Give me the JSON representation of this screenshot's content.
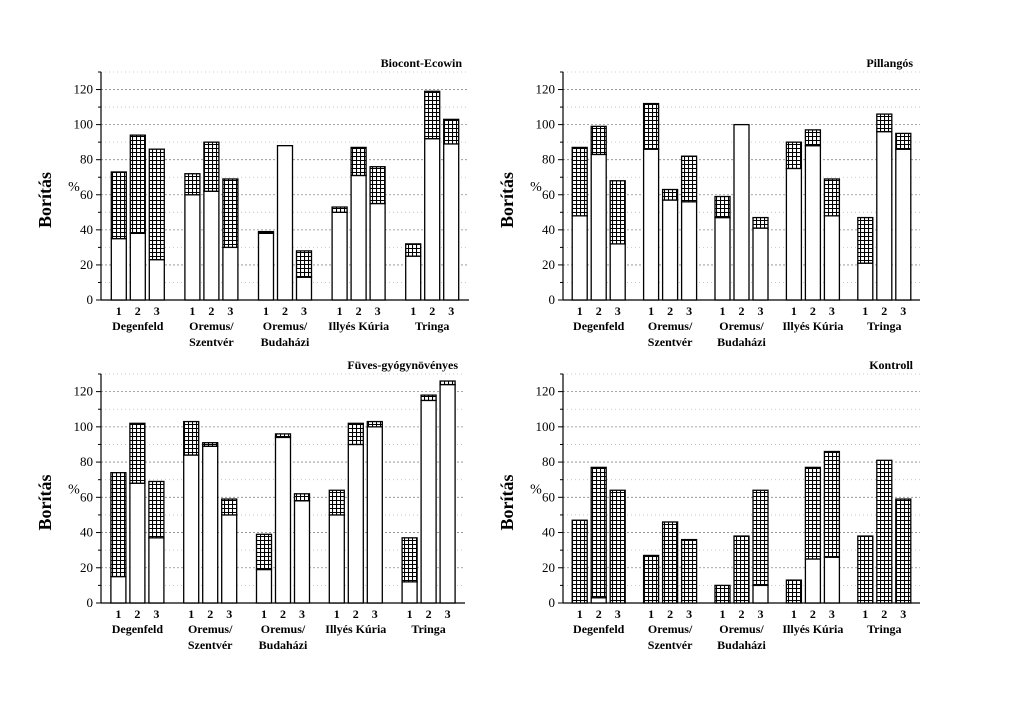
{
  "chart_data": [
    {
      "type": "bar",
      "stacked": true,
      "title": "Biocont-Ecowin",
      "ylabel": "Borítás",
      "unit": "%",
      "ylim": [
        0,
        130
      ],
      "yticks": [
        0,
        20,
        40,
        60,
        80,
        100,
        120
      ],
      "grid": true,
      "groups": [
        {
          "label": "Degenfeld",
          "categories": [
            "1",
            "2",
            "3"
          ]
        },
        {
          "label": "Oremus/ Szentvér",
          "categories": [
            "1",
            "2",
            "3"
          ]
        },
        {
          "label": "Oremus/ Budaházi",
          "categories": [
            "1",
            "2",
            "3"
          ]
        },
        {
          "label": "Illyés Kúria",
          "categories": [
            "1",
            "2",
            "3"
          ]
        },
        {
          "label": "Tringa",
          "categories": [
            "1",
            "2",
            "3"
          ]
        }
      ],
      "series": [
        {
          "pattern": "plain",
          "values": [
            35,
            38,
            23,
            60,
            62,
            30,
            38,
            88,
            13,
            50,
            71,
            55,
            25,
            92,
            89
          ]
        },
        {
          "pattern": "grid",
          "values": [
            38,
            56,
            63,
            12,
            28,
            39,
            1,
            0,
            15,
            3,
            16,
            21,
            7,
            27,
            14
          ]
        }
      ]
    },
    {
      "type": "bar",
      "stacked": true,
      "title": "Pillangós",
      "ylabel": "Borítás",
      "unit": "%",
      "ylim": [
        0,
        130
      ],
      "yticks": [
        0,
        20,
        40,
        60,
        80,
        100,
        120
      ],
      "grid": true,
      "groups": [
        {
          "label": "Degenfeld",
          "categories": [
            "1",
            "2",
            "3"
          ]
        },
        {
          "label": "Oremus/ Szentvér",
          "categories": [
            "1",
            "2",
            "3"
          ]
        },
        {
          "label": "Oremus/ Budaházi",
          "categories": [
            "1",
            "2",
            "3"
          ]
        },
        {
          "label": "Illyés Kúria",
          "categories": [
            "1",
            "2",
            "3"
          ]
        },
        {
          "label": "Tringa",
          "categories": [
            "1",
            "2",
            "3"
          ]
        }
      ],
      "series": [
        {
          "pattern": "plain",
          "values": [
            48,
            83,
            32,
            86,
            57,
            56,
            47,
            100,
            41,
            75,
            88,
            48,
            21,
            96,
            86
          ]
        },
        {
          "pattern": "grid",
          "values": [
            39,
            16,
            36,
            26,
            6,
            26,
            12,
            0,
            6,
            15,
            9,
            21,
            26,
            10,
            9
          ]
        }
      ]
    },
    {
      "type": "bar",
      "stacked": true,
      "title": "Füves-gyógynövényes",
      "ylabel": "Borítás",
      "unit": "%",
      "ylim": [
        0,
        130
      ],
      "yticks": [
        0,
        20,
        40,
        60,
        80,
        100,
        120
      ],
      "grid": true,
      "groups": [
        {
          "label": "Degenfeld",
          "categories": [
            "1",
            "2",
            "3"
          ]
        },
        {
          "label": "Oremus/ Szentvér",
          "categories": [
            "1",
            "2",
            "3"
          ]
        },
        {
          "label": "Oremus/ Budaházi",
          "categories": [
            "1",
            "2",
            "3"
          ]
        },
        {
          "label": "Illyés Kúria",
          "categories": [
            "1",
            "2",
            "3"
          ]
        },
        {
          "label": "Tringa",
          "categories": [
            "1",
            "2",
            "3"
          ]
        }
      ],
      "series": [
        {
          "pattern": "plain",
          "values": [
            15,
            68,
            37,
            84,
            89,
            50,
            19,
            94,
            58,
            50,
            90,
            100,
            12,
            115,
            124
          ]
        },
        {
          "pattern": "grid",
          "values": [
            59,
            34,
            32,
            19,
            2,
            9,
            20,
            2,
            4,
            14,
            12,
            3,
            25,
            3,
            2
          ]
        }
      ]
    },
    {
      "type": "bar",
      "stacked": true,
      "title": "Kontroll",
      "ylabel": "Borítás",
      "unit": "%",
      "ylim": [
        0,
        130
      ],
      "yticks": [
        0,
        20,
        40,
        60,
        80,
        100,
        120
      ],
      "grid": true,
      "groups": [
        {
          "label": "Degenfeld",
          "categories": [
            "1",
            "2",
            "3"
          ]
        },
        {
          "label": "Oremus/ Szentvér",
          "categories": [
            "1",
            "2",
            "3"
          ]
        },
        {
          "label": "Oremus/ Budaházi",
          "categories": [
            "1",
            "2",
            "3"
          ]
        },
        {
          "label": "Illyés Kúria",
          "categories": [
            "1",
            "2",
            "3"
          ]
        },
        {
          "label": "Tringa",
          "categories": [
            "1",
            "2",
            "3"
          ]
        }
      ],
      "series": [
        {
          "pattern": "plain",
          "values": [
            0,
            3,
            0,
            0,
            0,
            0,
            0,
            0,
            10,
            0,
            25,
            26,
            0,
            0,
            0
          ]
        },
        {
          "pattern": "grid",
          "values": [
            47,
            74,
            64,
            27,
            46,
            36,
            10,
            38,
            54,
            13,
            52,
            60,
            38,
            81,
            59
          ]
        }
      ]
    }
  ]
}
